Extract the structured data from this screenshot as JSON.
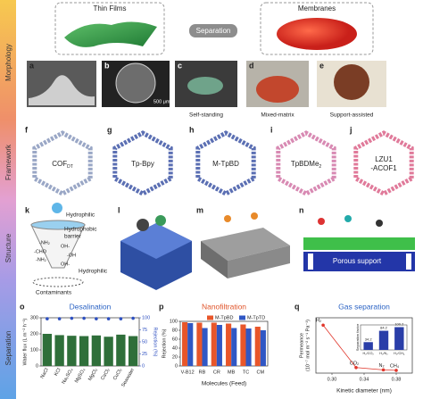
{
  "sidebar": [
    "Morphology",
    "Framework",
    "Structure",
    "Separation"
  ],
  "morphology": {
    "thin_films": "Thin Films",
    "membranes": "Membranes",
    "separation": "Separation",
    "panels": [
      {
        "letter": "a"
      },
      {
        "letter": "b",
        "caption": "500 μm"
      },
      {
        "letter": "c",
        "caption": "Self-standing"
      },
      {
        "letter": "d",
        "caption": "Mixed-matrix"
      },
      {
        "letter": "e",
        "caption": "Support-assisted"
      }
    ]
  },
  "framework": {
    "panels": [
      {
        "letter": "f",
        "label": "COF",
        "sub": "DT"
      },
      {
        "letter": "g",
        "label": "Tp-Bpy"
      },
      {
        "letter": "h",
        "label": "M-TpBD"
      },
      {
        "letter": "i",
        "label": "TpBDMe",
        "sub": "2"
      },
      {
        "letter": "j",
        "lines": [
          "LZU1",
          "-ACOF1"
        ]
      }
    ]
  },
  "structure": {
    "letters": [
      "k",
      "l",
      "m",
      "n"
    ],
    "top": "Hydrophilic",
    "barrier": [
      "Hydrophobic",
      "barrier"
    ],
    "groups": [
      "-NH₂",
      "-CHO",
      "-NH₂",
      "OH-",
      "-OH",
      "OH-"
    ],
    "bottom": "Hydrophilic",
    "contaminants": "Contaminants",
    "support": "Porous support"
  },
  "chart_data": [
    {
      "type": "bar",
      "panel": "o",
      "title": "Desalination",
      "ylabel": "Water flux (L m⁻² h⁻¹)",
      "y2label": "Rejection (%)",
      "categories": [
        "NaCl",
        "KCl",
        "Na₂SO₄",
        "MgSO₄",
        "MgCl₂",
        "CaCl₂",
        "CuCl₂",
        "Seawater"
      ],
      "series": [
        {
          "color": "#2f6f3a",
          "values": [
            200,
            192,
            188,
            186,
            190,
            182,
            195,
            186
          ]
        },
        {
          "color": "#2d4fc0",
          "axis": "y2",
          "values": [
            98,
            98,
            99,
            99,
            98,
            98,
            98,
            99
          ]
        }
      ],
      "ylim": [
        0,
        300
      ],
      "yticks": [
        0,
        100,
        200,
        300
      ],
      "y2lim": [
        0,
        100
      ],
      "y2ticks": [
        0,
        25,
        50,
        75,
        100
      ]
    },
    {
      "type": "bar",
      "panel": "p",
      "title": "Nanofiltration",
      "ylabel": "Rejection (%)",
      "xlabel": "Molecules (Feed)",
      "categories": [
        "V-B12",
        "RB",
        "CR",
        "MB",
        "TC",
        "CM"
      ],
      "series": [
        {
          "name": "M-TpBD",
          "color": "#e8562a",
          "values": [
            98,
            97,
            97,
            95,
            93,
            88
          ]
        },
        {
          "name": "M-TpTD",
          "color": "#3057c4",
          "values": [
            96,
            85,
            92,
            85,
            84,
            80
          ]
        }
      ],
      "ylim": [
        0,
        100
      ],
      "yticks": [
        0,
        20,
        40,
        60,
        80,
        100
      ]
    },
    {
      "type": "line",
      "panel": "q",
      "title": "Gas separation",
      "ylabel": [
        "Permeance",
        "(10⁻⁷ mol m⁻² s⁻¹ Pa⁻¹)"
      ],
      "xlabel": "Kinetic diameter (nm)",
      "x": [
        0.289,
        0.33,
        0.364,
        0.38
      ],
      "values": [
        5.2,
        0.6,
        0.35,
        0.3
      ],
      "point_labels": [
        "H₂",
        "CO₂",
        "N₂",
        "CH₄"
      ],
      "color": "#e0352a",
      "xlim": [
        0.28,
        0.4
      ],
      "xticks": [
        {
          "value": 0.3,
          "label": "0.30"
        },
        {
          "value": 0.34,
          "label": "0.34"
        },
        {
          "value": 0.38,
          "label": "0.38"
        }
      ],
      "ylim": [
        0,
        6
      ],
      "inset": {
        "type": "bar",
        "title": "Separation factor",
        "categories": [
          "H₂/CO₂",
          "H₂/N₂",
          "H₂/CH₄"
        ],
        "values": [
          34.2,
          84.2,
          100.2
        ],
        "color": "#2a3ea8",
        "ylim": [
          0,
          110
        ]
      }
    }
  ]
}
